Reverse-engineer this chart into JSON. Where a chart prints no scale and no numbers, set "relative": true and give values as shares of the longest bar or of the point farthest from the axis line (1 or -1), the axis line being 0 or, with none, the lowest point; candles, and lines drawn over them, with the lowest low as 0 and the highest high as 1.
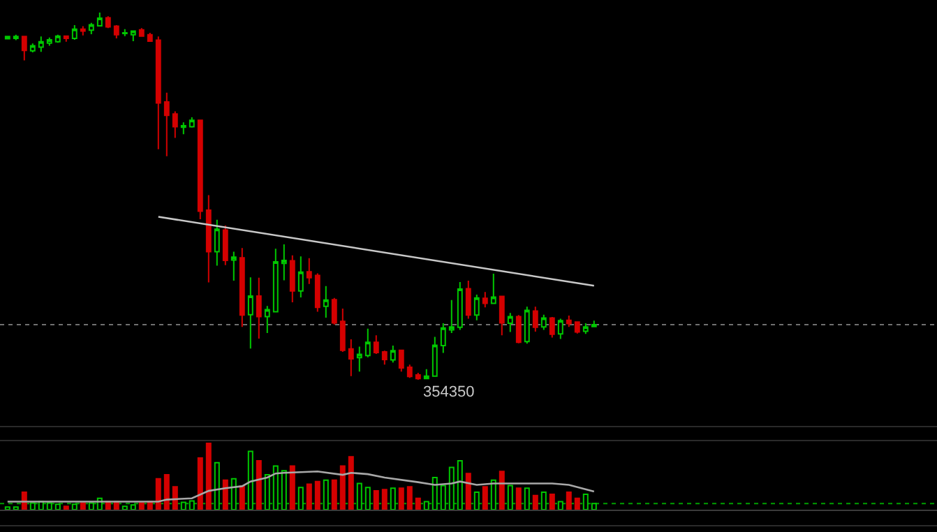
{
  "chart_data": [
    {
      "type": "candlestick",
      "relative": true,
      "categories": [
        null,
        null,
        null,
        null,
        null,
        null,
        null,
        null,
        null,
        null,
        null,
        null,
        null,
        null,
        null,
        null,
        null,
        null,
        null,
        null,
        null,
        null,
        null,
        null,
        null,
        null,
        null,
        null,
        null,
        null,
        null,
        null,
        null,
        null,
        null,
        null,
        null,
        null,
        null,
        null,
        null,
        null,
        null,
        null,
        null,
        null,
        null,
        null,
        null,
        null,
        null,
        null,
        null,
        null,
        null,
        null,
        null,
        null,
        null,
        null,
        null,
        null,
        null,
        null,
        null,
        null,
        null,
        null,
        null,
        null,
        null
      ],
      "ohlc": [
        [
          0.929,
          0.936,
          0.928,
          0.935
        ],
        [
          0.93,
          0.94,
          0.925,
          0.935
        ],
        [
          0.935,
          0.935,
          0.87,
          0.897
        ],
        [
          0.896,
          0.916,
          0.892,
          0.91
        ],
        [
          0.906,
          0.935,
          0.893,
          0.921
        ],
        [
          0.917,
          0.932,
          0.91,
          0.926
        ],
        [
          0.921,
          0.94,
          0.918,
          0.936
        ],
        [
          0.936,
          0.936,
          0.921,
          0.93
        ],
        [
          0.93,
          0.966,
          0.926,
          0.955
        ],
        [
          0.955,
          0.963,
          0.938,
          0.95
        ],
        [
          0.952,
          0.972,
          0.941,
          0.967
        ],
        [
          0.964,
          1.0,
          0.962,
          0.985
        ],
        [
          0.986,
          0.99,
          0.958,
          0.961
        ],
        [
          0.963,
          0.966,
          0.93,
          0.94
        ],
        [
          0.943,
          0.955,
          0.936,
          0.945
        ],
        [
          0.94,
          0.95,
          0.922,
          0.95
        ],
        [
          0.953,
          0.958,
          0.935,
          0.936
        ],
        [
          0.94,
          0.945,
          0.921,
          0.922
        ],
        [
          0.925,
          0.935,
          0.628,
          0.754
        ],
        [
          0.757,
          0.782,
          0.609,
          0.72
        ],
        [
          0.724,
          0.731,
          0.659,
          0.689
        ],
        [
          0.688,
          0.701,
          0.669,
          0.692
        ],
        [
          0.689,
          0.715,
          0.687,
          0.707
        ],
        [
          0.707,
          0.707,
          0.437,
          0.459
        ],
        [
          0.462,
          0.503,
          0.265,
          0.349
        ],
        [
          0.349,
          0.436,
          0.311,
          0.41
        ],
        [
          0.408,
          0.42,
          0.312,
          0.325
        ],
        [
          0.326,
          0.349,
          0.27,
          0.334
        ],
        [
          0.332,
          0.359,
          0.144,
          0.176
        ],
        [
          0.177,
          0.279,
          0.085,
          0.228
        ],
        [
          0.228,
          0.278,
          0.112,
          0.172
        ],
        [
          0.172,
          0.201,
          0.127,
          0.191
        ],
        [
          0.185,
          0.357,
          0.185,
          0.321
        ],
        [
          0.317,
          0.369,
          0.271,
          0.325
        ],
        [
          0.324,
          0.339,
          0.211,
          0.242
        ],
        [
          0.242,
          0.336,
          0.224,
          0.293
        ],
        [
          0.294,
          0.331,
          0.261,
          0.278
        ],
        [
          0.284,
          0.29,
          0.185,
          0.197
        ],
        [
          0.2,
          0.255,
          0.169,
          0.217
        ],
        [
          0.218,
          0.223,
          0.15,
          0.155
        ],
        [
          0.159,
          0.194,
          0.076,
          0.08
        ],
        [
          0.084,
          0.11,
          0.01,
          0.057
        ],
        [
          0.06,
          0.09,
          0.022,
          0.069
        ],
        [
          0.066,
          0.139,
          0.061,
          0.102
        ],
        [
          0.102,
          0.121,
          0.07,
          0.074
        ],
        [
          0.076,
          0.079,
          0.041,
          0.055
        ],
        [
          0.054,
          0.093,
          0.047,
          0.079
        ],
        [
          0.08,
          0.08,
          0.022,
          0.032
        ],
        [
          0.034,
          0.041,
          0.005,
          0.009
        ],
        [
          0.013,
          0.019,
          0.0,
          0.003
        ],
        [
          0.003,
          0.029,
          0.002,
          0.01
        ],
        [
          0.01,
          0.117,
          0.01,
          0.094
        ],
        [
          0.093,
          0.154,
          0.073,
          0.141
        ],
        [
          0.136,
          0.217,
          0.127,
          0.144
        ],
        [
          0.143,
          0.266,
          0.136,
          0.247
        ],
        [
          0.248,
          0.27,
          0.166,
          0.176
        ],
        [
          0.176,
          0.232,
          0.162,
          0.223
        ],
        [
          0.222,
          0.239,
          0.197,
          0.208
        ],
        [
          0.208,
          0.289,
          0.208,
          0.225
        ],
        [
          0.227,
          0.227,
          0.121,
          0.155
        ],
        [
          0.154,
          0.182,
          0.13,
          0.172
        ],
        [
          0.172,
          0.176,
          0.099,
          0.102
        ],
        [
          0.104,
          0.199,
          0.098,
          0.189
        ],
        [
          0.187,
          0.199,
          0.131,
          0.143
        ],
        [
          0.144,
          0.177,
          0.136,
          0.168
        ],
        [
          0.168,
          0.171,
          0.115,
          0.124
        ],
        [
          0.125,
          0.166,
          0.111,
          0.161
        ],
        [
          0.162,
          0.175,
          0.144,
          0.153
        ],
        [
          0.157,
          0.159,
          0.126,
          0.13
        ],
        [
          0.132,
          0.154,
          0.125,
          0.144
        ],
        [
          0.145,
          0.161,
          0.144,
          0.15
        ]
      ],
      "colors": [
        "#00c800",
        "#00c800",
        "#d40000",
        "#00c800",
        "#00c800",
        "#00c800",
        "#00c800",
        "#d40000",
        "#00c800",
        "#d40000",
        "#00c800",
        "#00c800",
        "#d40000",
        "#d40000",
        "#00c800",
        "#00c800",
        "#d40000",
        "#d40000",
        "#d40000",
        "#d40000",
        "#d40000",
        "#00c800",
        "#00c800",
        "#d40000",
        "#d40000",
        "#00c800",
        "#d40000",
        "#00c800",
        "#d40000",
        "#00c800",
        "#d40000",
        "#00c800",
        "#00c800",
        "#00c800",
        "#d40000",
        "#00c800",
        "#d40000",
        "#d40000",
        "#00c800",
        "#d40000",
        "#d40000",
        "#d40000",
        "#00c800",
        "#00c800",
        "#d40000",
        "#d40000",
        "#00c800",
        "#d40000",
        "#d40000",
        "#d40000",
        "#00c800",
        "#00c800",
        "#00c800",
        "#00c800",
        "#00c800",
        "#d40000",
        "#00c800",
        "#d40000",
        "#00c800",
        "#d40000",
        "#00c800",
        "#d40000",
        "#00c800",
        "#d40000",
        "#00c800",
        "#d40000",
        "#00c800",
        "#d40000",
        "#d40000",
        "#00c800",
        "#00c800"
      ],
      "series": [
        {
          "type": "line",
          "values": [
            null,
            null,
            null,
            null,
            null,
            null,
            null,
            null,
            null,
            null,
            null,
            null,
            null,
            null,
            null,
            null,
            null,
            null,
            0.444,
            null,
            null,
            null,
            null,
            null,
            null,
            null,
            null,
            null,
            null,
            null,
            null,
            null,
            null,
            null,
            null,
            null,
            null,
            null,
            null,
            null,
            null,
            null,
            null,
            null,
            null,
            null,
            null,
            null,
            null,
            null,
            null,
            null,
            null,
            null,
            null,
            null,
            null,
            null,
            null,
            null,
            null,
            null,
            null,
            null,
            null,
            null,
            null,
            null,
            null,
            null,
            0.256
          ],
          "color": "#c8c8c8"
        }
      ],
      "ref_lines": [
        {
          "axis": "y",
          "value": 0.15,
          "color": "#707070",
          "line_style": "dotted"
        }
      ],
      "annotations": [
        "354350"
      ],
      "legend": false
    },
    {
      "type": "bar",
      "relative": true,
      "categories": [
        null,
        null,
        null,
        null,
        null,
        null,
        null,
        null,
        null,
        null,
        null,
        null,
        null,
        null,
        null,
        null,
        null,
        null,
        null,
        null,
        null,
        null,
        null,
        null,
        null,
        null,
        null,
        null,
        null,
        null,
        null,
        null,
        null,
        null,
        null,
        null,
        null,
        null,
        null,
        null,
        null,
        null,
        null,
        null,
        null,
        null,
        null,
        null,
        null,
        null,
        null,
        null,
        null,
        null,
        null,
        null,
        null,
        null,
        null,
        null,
        null,
        null,
        null,
        null,
        null,
        null,
        null,
        null,
        null,
        null,
        null
      ],
      "series": [
        {
          "type": "bar",
          "values": [
            0.04,
            0.04,
            0.26,
            0.1,
            0.12,
            0.1,
            0.08,
            0.05,
            0.08,
            0.1,
            0.1,
            0.17,
            0.12,
            0.12,
            0.05,
            0.07,
            0.1,
            0.12,
            0.46,
            0.52,
            0.34,
            0.11,
            0.13,
            0.77,
            1,
            0.7,
            0.44,
            0.46,
            0.35,
            0.87,
            0.73,
            0.52,
            0.65,
            0.58,
            0.65,
            0.33,
            0.38,
            0.42,
            0.44,
            0.44,
            0.65,
            0.79,
            0.39,
            0.33,
            0.28,
            0.3,
            0.32,
            0.32,
            0.34,
            0.17,
            0.12,
            0.48,
            0.36,
            0.63,
            0.73,
            0.54,
            0.26,
            0.34,
            0.44,
            0.57,
            0.36,
            0.32,
            0.32,
            0.21,
            0.26,
            0.23,
            0.12,
            0.26,
            0.17,
            0.23,
            0.09
          ],
          "colors": [
            "#00c800",
            "#00c800",
            "#d40000",
            "#00c800",
            "#00c800",
            "#00c800",
            "#00c800",
            "#d40000",
            "#00c800",
            "#d40000",
            "#00c800",
            "#00c800",
            "#d40000",
            "#d40000",
            "#00c800",
            "#00c800",
            "#d40000",
            "#d40000",
            "#d40000",
            "#d40000",
            "#d40000",
            "#00c800",
            "#00c800",
            "#d40000",
            "#d40000",
            "#00c800",
            "#d40000",
            "#00c800",
            "#d40000",
            "#00c800",
            "#d40000",
            "#00c800",
            "#00c800",
            "#00c800",
            "#d40000",
            "#00c800",
            "#d40000",
            "#d40000",
            "#00c800",
            "#d40000",
            "#d40000",
            "#d40000",
            "#00c800",
            "#00c800",
            "#d40000",
            "#d40000",
            "#00c800",
            "#d40000",
            "#d40000",
            "#d40000",
            "#00c800",
            "#00c800",
            "#00c800",
            "#00c800",
            "#00c800",
            "#d40000",
            "#00c800",
            "#d40000",
            "#00c800",
            "#d40000",
            "#00c800",
            "#d40000",
            "#00c800",
            "#d40000",
            "#00c800",
            "#d40000",
            "#00c800",
            "#d40000",
            "#d40000",
            "#00c800",
            "#00c800"
          ]
        },
        {
          "type": "line",
          "values": [
            0.12,
            null,
            null,
            null,
            null,
            null,
            null,
            null,
            null,
            null,
            null,
            null,
            null,
            null,
            null,
            null,
            null,
            null,
            0.12,
            0.15,
            null,
            null,
            0.17,
            null,
            0.28,
            null,
            0.32,
            null,
            0.35,
            0.42,
            null,
            0.48,
            0.54,
            0.55,
            null,
            null,
            null,
            0.57,
            null,
            null,
            0.52,
            0.55,
            null,
            0.53,
            null,
            0.48,
            null,
            null,
            null,
            0.41,
            null,
            0.37,
            null,
            0.39,
            0.42,
            null,
            0.37,
            null,
            0.39,
            null,
            null,
            null,
            null,
            null,
            null,
            0.39,
            null,
            0.37,
            null,
            null,
            0.27
          ],
          "color": "#a8a8a8"
        }
      ],
      "ref_lines": [
        {
          "axis": "y",
          "value": 0.09,
          "color": "#00a000",
          "line_style": "dotted"
        }
      ],
      "legend": false
    }
  ]
}
